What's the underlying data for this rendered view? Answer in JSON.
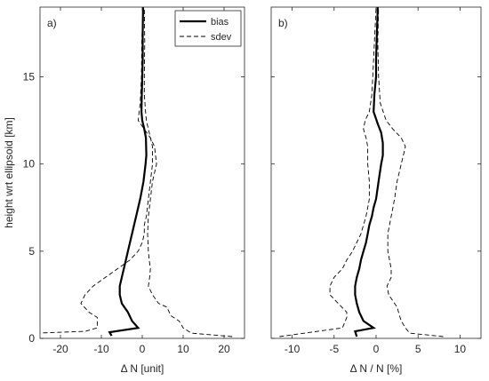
{
  "chart_data": [
    {
      "type": "line",
      "panel_label": "a)",
      "xlabel": "Δ  N [unit]",
      "ylabel": "height wrt ellipsoid [km]",
      "xlim": [
        -25,
        25
      ],
      "ylim": [
        0,
        19
      ],
      "xticks": [
        -20,
        -10,
        0,
        10,
        20
      ],
      "yticks": [
        0,
        5,
        10,
        15
      ],
      "grid": false,
      "legend_position": "top-right",
      "series": [
        {
          "name": "bias",
          "style": "solid",
          "x": [
            -7.5,
            -8,
            -1,
            -2.5,
            -3.5,
            -5,
            -5.5,
            -5.5,
            -5,
            -4.5,
            -4,
            -3.5,
            -3,
            -2.5,
            -2,
            -1.5,
            -1,
            -0.5,
            0.3,
            0.8,
            1.0,
            0.9,
            0.5,
            0.0,
            -0.2,
            -0.1,
            0,
            0.1,
            0.1,
            0.2
          ],
          "y": [
            0.15,
            0.35,
            0.6,
            1.0,
            1.5,
            2.0,
            2.5,
            3.0,
            3.5,
            4.0,
            4.5,
            5.0,
            5.5,
            6.0,
            6.5,
            7.0,
            7.5,
            8.0,
            9.0,
            10.0,
            10.5,
            11.5,
            12.0,
            12.5,
            13.0,
            14.0,
            15.0,
            16.0,
            17.5,
            19.0
          ]
        },
        {
          "name": "sdev",
          "style": "dashed",
          "x": [
            -26,
            -14,
            -11,
            -11,
            -13,
            -15,
            -14,
            -12,
            -9,
            -6,
            -3,
            -1,
            0,
            0.5,
            0.5,
            1.0,
            1.5,
            2.0,
            2.5,
            2.5,
            2.0,
            1.5,
            1.0,
            0.8,
            0.5,
            0.5,
            0.6,
            0.5
          ],
          "y": [
            0.3,
            0.4,
            0.6,
            1.2,
            1.5,
            2.0,
            2.5,
            3.0,
            3.5,
            4.0,
            4.5,
            5.0,
            5.5,
            6.0,
            6.5,
            7.0,
            8.0,
            9.0,
            10.0,
            11.0,
            11.5,
            12.0,
            12.5,
            13.0,
            14.0,
            15.0,
            17.0,
            19.0
          ]
        },
        {
          "name": "",
          "style": "dashed",
          "x": [
            22,
            12,
            10,
            9,
            7,
            6,
            4,
            2.5,
            1.5,
            1.8,
            2,
            1.7,
            1.5,
            1.3,
            1.5,
            2.0,
            2.5,
            3.5,
            3.0,
            2.0,
            0.5,
            -1.0,
            -0.5,
            -0.2,
            -0.1,
            0.2
          ],
          "y": [
            0.1,
            0.3,
            0.6,
            1.0,
            1.3,
            1.8,
            2.0,
            2.5,
            3.0,
            3.5,
            4.0,
            4.5,
            5.0,
            6.0,
            7.0,
            8.0,
            9.0,
            10.0,
            11.0,
            11.5,
            12.0,
            12.5,
            13.5,
            15.0,
            17.0,
            19.0
          ]
        }
      ]
    },
    {
      "type": "line",
      "panel_label": "b)",
      "xlabel": "Δ  N / N [%]",
      "ylabel": "",
      "xlim": [
        -12.5,
        12.5
      ],
      "ylim": [
        0,
        19
      ],
      "xticks": [
        -10,
        -5,
        0,
        5,
        10
      ],
      "yticks": [
        0,
        5,
        10,
        15
      ],
      "grid": false,
      "series": [
        {
          "name": "bias",
          "style": "solid",
          "x": [
            -2.3,
            -2.5,
            -0.3,
            -1.5,
            -2.0,
            -2.3,
            -2.5,
            -2.5,
            -2.3,
            -2.0,
            -1.8,
            -1.5,
            -1.2,
            -1.0,
            -0.8,
            -0.5,
            -0.3,
            0.0,
            0.3,
            0.6,
            0.8,
            0.8,
            0.6,
            0.2,
            -0.3,
            -0.2,
            0.0,
            0.0,
            0.1,
            0.2
          ],
          "y": [
            0.1,
            0.4,
            0.6,
            1.0,
            1.5,
            2.0,
            2.5,
            3.0,
            3.5,
            4.0,
            4.5,
            5.0,
            5.5,
            6.0,
            6.5,
            7.0,
            7.5,
            8.0,
            9.0,
            10.0,
            10.5,
            11.2,
            11.8,
            12.3,
            13.0,
            14.0,
            15.0,
            16.0,
            17.5,
            19.0
          ]
        },
        {
          "name": "sdev",
          "style": "dashed",
          "x": [
            -11.5,
            -7.0,
            -4.0,
            -3.5,
            -3.5,
            -4.5,
            -5.5,
            -5.5,
            -5.0,
            -4.0,
            -3.5,
            -2.8,
            -2.3,
            -1.8,
            -1.5,
            -1.2,
            -1.0,
            -0.8,
            -0.8,
            -1.0,
            -1.0,
            -1.2,
            -1.5,
            -1.3,
            -0.8,
            -0.5,
            -0.3,
            0.0
          ],
          "y": [
            0.1,
            0.4,
            0.6,
            1.2,
            1.5,
            2.0,
            2.5,
            3.0,
            3.5,
            4.0,
            4.5,
            5.0,
            5.5,
            6.0,
            6.5,
            7.0,
            7.5,
            8.0,
            9.0,
            10.0,
            11.0,
            11.5,
            12.0,
            12.5,
            13.0,
            14.0,
            16.0,
            19.0
          ]
        },
        {
          "name": "",
          "style": "dashed",
          "x": [
            8.0,
            4.0,
            3.5,
            3.0,
            2.8,
            2.5,
            2.2,
            1.5,
            1.3,
            1.8,
            1.8,
            1.6,
            1.4,
            1.4,
            1.8,
            2.2,
            2.5,
            3.0,
            3.5,
            3.0,
            2.0,
            1.2,
            0.5,
            0.3,
            0.2,
            0.3
          ],
          "y": [
            0.1,
            0.3,
            0.6,
            1.0,
            1.3,
            1.8,
            2.0,
            2.5,
            3.0,
            3.5,
            4.0,
            4.5,
            5.0,
            6.0,
            7.0,
            8.0,
            9.0,
            10.0,
            11.0,
            11.5,
            12.0,
            12.5,
            13.5,
            15.0,
            17.0,
            19.0
          ]
        }
      ]
    }
  ]
}
